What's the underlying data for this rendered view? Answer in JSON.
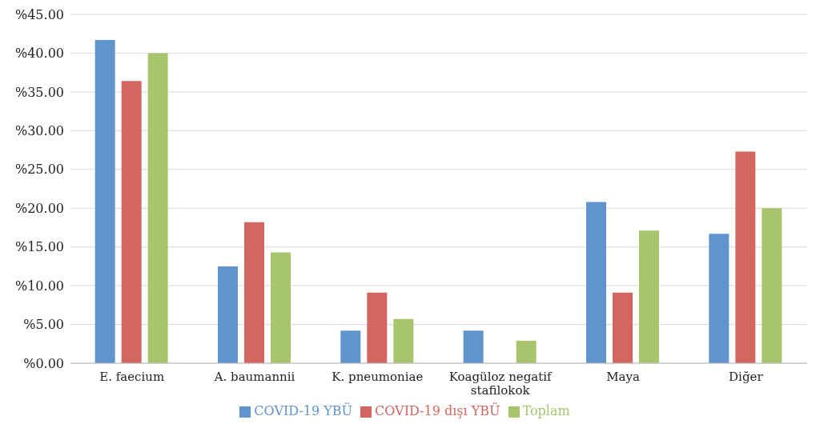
{
  "chart_data": {
    "type": "bar",
    "categories": [
      "E. faecium",
      "A. baumannii",
      "K. pneumoniae",
      "Koagüloz negatif stafilokok",
      "Maya",
      "Diğer"
    ],
    "series": [
      {
        "name": "COVID-19 YBÜ",
        "color": "#6094cc",
        "values": [
          41.7,
          12.5,
          4.2,
          4.2,
          20.8,
          16.7
        ]
      },
      {
        "name": "COVID-19 dışı YBÜ",
        "color": "#d46660",
        "values": [
          36.4,
          18.2,
          9.1,
          0,
          9.1,
          27.3
        ]
      },
      {
        "name": "Toplam",
        "color": "#a6c56c",
        "values": [
          40.0,
          14.3,
          5.7,
          2.9,
          17.1,
          20.0
        ]
      }
    ],
    "ylim": [
      0,
      45
    ],
    "yticks": [
      {
        "value": 0,
        "label": "%0.00"
      },
      {
        "value": 5,
        "label": "%5.00"
      },
      {
        "value": 10,
        "label": "%10.00"
      },
      {
        "value": 15,
        "label": "%15.00"
      },
      {
        "value": 20,
        "label": "%20.00"
      },
      {
        "value": 25,
        "label": "%25.00"
      },
      {
        "value": 30,
        "label": "%30.00"
      },
      {
        "value": 35,
        "label": "%35.00"
      },
      {
        "value": 40,
        "label": "%40.00"
      },
      {
        "value": 45,
        "label": "%45.00"
      }
    ],
    "grid": "y",
    "legend": "bottom"
  }
}
